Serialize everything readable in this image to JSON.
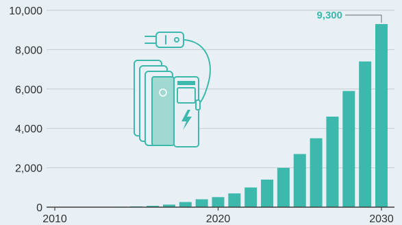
{
  "colors": {
    "bar": "#3cb8ac",
    "callout": "#3cb8ac",
    "illustration": "#3cb8ac",
    "background": "#e8f0f5"
  },
  "illustration": {
    "icon": "ev-charging-station-icon"
  },
  "chart_data": {
    "type": "bar",
    "title": "",
    "xlabel": "",
    "ylabel": "",
    "categories": [
      "2010",
      "2011",
      "2012",
      "2013",
      "2014",
      "2015",
      "2016",
      "2017",
      "2018",
      "2019",
      "2020",
      "2021",
      "2022",
      "2023",
      "2024",
      "2025",
      "2026",
      "2027",
      "2028",
      "2029",
      "2030"
    ],
    "values": [
      0,
      0,
      0,
      0,
      20,
      40,
      70,
      130,
      260,
      400,
      510,
      700,
      1000,
      1400,
      2000,
      2700,
      3500,
      4600,
      5900,
      7400,
      9300
    ],
    "ylim": [
      0,
      10000
    ],
    "yticks": [
      "0",
      "2,000",
      "4,000",
      "6,000",
      "8,000",
      "10,000"
    ],
    "yticks_values": [
      0,
      2000,
      4000,
      6000,
      8000,
      10000
    ],
    "xticks": [
      "2010",
      "2020",
      "2030"
    ],
    "grid": true,
    "annotation": {
      "text": "9,300",
      "category": "2030"
    }
  }
}
